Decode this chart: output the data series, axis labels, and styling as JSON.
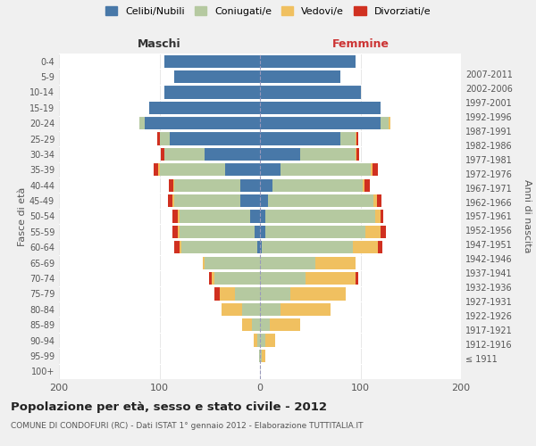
{
  "age_groups": [
    "100+",
    "95-99",
    "90-94",
    "85-89",
    "80-84",
    "75-79",
    "70-74",
    "65-69",
    "60-64",
    "55-59",
    "50-54",
    "45-49",
    "40-44",
    "35-39",
    "30-34",
    "25-29",
    "20-24",
    "15-19",
    "10-14",
    "5-9",
    "0-4"
  ],
  "birth_years": [
    "≤ 1911",
    "1912-1916",
    "1917-1921",
    "1922-1926",
    "1927-1931",
    "1932-1936",
    "1937-1941",
    "1942-1946",
    "1947-1951",
    "1952-1956",
    "1957-1961",
    "1962-1966",
    "1967-1971",
    "1972-1976",
    "1977-1981",
    "1982-1986",
    "1987-1991",
    "1992-1996",
    "1997-2001",
    "2002-2006",
    "2007-2011"
  ],
  "male": {
    "celibi": [
      0,
      0,
      0,
      0,
      0,
      0,
      0,
      0,
      3,
      5,
      10,
      20,
      20,
      35,
      55,
      90,
      115,
      110,
      95,
      85,
      95
    ],
    "coniugati": [
      0,
      1,
      3,
      8,
      18,
      25,
      45,
      55,
      75,
      75,
      70,
      65,
      65,
      65,
      40,
      10,
      5,
      0,
      0,
      0,
      0
    ],
    "vedovi": [
      0,
      0,
      3,
      10,
      20,
      15,
      3,
      2,
      2,
      2,
      2,
      2,
      1,
      1,
      0,
      0,
      0,
      0,
      0,
      0,
      0
    ],
    "divorziati": [
      0,
      0,
      0,
      0,
      0,
      5,
      3,
      0,
      5,
      5,
      5,
      5,
      5,
      5,
      4,
      2,
      0,
      0,
      0,
      0,
      0
    ]
  },
  "female": {
    "nubili": [
      0,
      0,
      0,
      0,
      0,
      0,
      0,
      0,
      2,
      5,
      5,
      8,
      12,
      20,
      40,
      80,
      120,
      120,
      100,
      80,
      95
    ],
    "coniugate": [
      0,
      2,
      5,
      10,
      20,
      30,
      45,
      55,
      90,
      100,
      110,
      105,
      90,
      90,
      55,
      15,
      8,
      0,
      0,
      0,
      0
    ],
    "vedove": [
      0,
      3,
      10,
      30,
      50,
      55,
      50,
      40,
      25,
      15,
      5,
      3,
      2,
      2,
      1,
      1,
      2,
      0,
      0,
      0,
      0
    ],
    "divorziate": [
      0,
      0,
      0,
      0,
      0,
      0,
      3,
      0,
      5,
      5,
      3,
      5,
      5,
      5,
      3,
      2,
      0,
      0,
      0,
      0,
      0
    ]
  },
  "colors": {
    "celibi": "#4878a8",
    "coniugati": "#b5c9a0",
    "vedovi": "#f0c060",
    "divorziati": "#d03020"
  },
  "title": "Popolazione per età, sesso e stato civile - 2012",
  "subtitle": "COMUNE DI CONDOFURI (RC) - Dati ISTAT 1° gennaio 2012 - Elaborazione TUTTITALIA.IT",
  "xlabel_left": "Maschi",
  "xlabel_right": "Femmine",
  "ylabel_left": "Fasce di età",
  "ylabel_right": "Anni di nascita",
  "legend_labels": [
    "Celibi/Nubili",
    "Coniugati/e",
    "Vedovi/e",
    "Divorziati/e"
  ],
  "xlim": 200,
  "bg_color": "#f0f0f0",
  "plot_bg": "#ffffff"
}
